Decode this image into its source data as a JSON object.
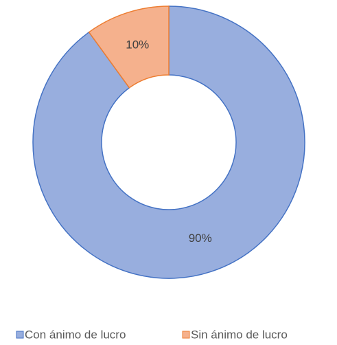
{
  "chart_data": {
    "type": "donut",
    "categories": [
      "Con ánimo de lucro",
      "Sin ánimo de lucro"
    ],
    "values": [
      90,
      10
    ],
    "value_labels": [
      "90%",
      "10%"
    ],
    "colors": [
      "#98aede",
      "#f5b18d"
    ],
    "edge_colors": [
      "#4472c4",
      "#ed7d31"
    ],
    "legend": "bottom"
  }
}
